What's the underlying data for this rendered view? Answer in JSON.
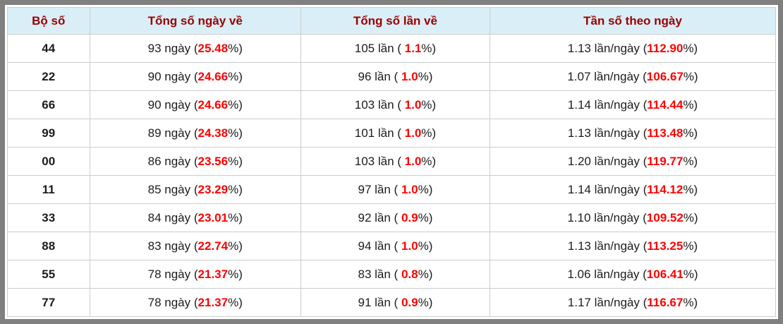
{
  "colors": {
    "frame_gray": "#808080",
    "header_background": "#daeef7",
    "header_text": "#990000",
    "body_text": "#1c1c1c",
    "percent_red": "#ff0000",
    "cell_border": "#cccccc"
  },
  "table": {
    "headers": [
      "Bộ số",
      "Tổng số ngày về",
      "Tổng số lần về",
      "Tần số theo ngày"
    ],
    "rows": [
      [
        {
          "text": "44"
        },
        {
          "pre": "93 ngày (",
          "red": "25.48",
          "post": "%)"
        },
        {
          "pre": "105 lần ( ",
          "red": "1.1",
          "post": "%)"
        },
        {
          "pre": "1.13 lần/ngày (",
          "red": "112.90",
          "post": "%)"
        }
      ],
      [
        {
          "text": "22"
        },
        {
          "pre": "90 ngày (",
          "red": "24.66",
          "post": "%)"
        },
        {
          "pre": "96 lần ( ",
          "red": "1.0",
          "post": "%)"
        },
        {
          "pre": "1.07 lần/ngày (",
          "red": "106.67",
          "post": "%)"
        }
      ],
      [
        {
          "text": "66"
        },
        {
          "pre": "90 ngày (",
          "red": "24.66",
          "post": "%)"
        },
        {
          "pre": "103 lần ( ",
          "red": "1.0",
          "post": "%)"
        },
        {
          "pre": "1.14 lần/ngày (",
          "red": "114.44",
          "post": "%)"
        }
      ],
      [
        {
          "text": "99"
        },
        {
          "pre": "89 ngày (",
          "red": "24.38",
          "post": "%)"
        },
        {
          "pre": "101 lần ( ",
          "red": "1.0",
          "post": "%)"
        },
        {
          "pre": "1.13 lần/ngày (",
          "red": "113.48",
          "post": "%)"
        }
      ],
      [
        {
          "text": "00"
        },
        {
          "pre": "86 ngày (",
          "red": "23.56",
          "post": "%)"
        },
        {
          "pre": "103 lần ( ",
          "red": "1.0",
          "post": "%)"
        },
        {
          "pre": "1.20 lần/ngày (",
          "red": "119.77",
          "post": "%)"
        }
      ],
      [
        {
          "text": "11"
        },
        {
          "pre": "85 ngày (",
          "red": "23.29",
          "post": "%)"
        },
        {
          "pre": "97 lần ( ",
          "red": "1.0",
          "post": "%)"
        },
        {
          "pre": "1.14 lần/ngày (",
          "red": "114.12",
          "post": "%)"
        }
      ],
      [
        {
          "text": "33"
        },
        {
          "pre": "84 ngày (",
          "red": "23.01",
          "post": "%)"
        },
        {
          "pre": "92 lần ( ",
          "red": "0.9",
          "post": "%)"
        },
        {
          "pre": "1.10 lần/ngày (",
          "red": "109.52",
          "post": "%)"
        }
      ],
      [
        {
          "text": "88"
        },
        {
          "pre": "83 ngày (",
          "red": "22.74",
          "post": "%)"
        },
        {
          "pre": "94 lần ( ",
          "red": "1.0",
          "post": "%)"
        },
        {
          "pre": "1.13 lần/ngày (",
          "red": "113.25",
          "post": "%)"
        }
      ],
      [
        {
          "text": "55"
        },
        {
          "pre": "78 ngày (",
          "red": "21.37",
          "post": "%)"
        },
        {
          "pre": "83 lần ( ",
          "red": "0.8",
          "post": "%)"
        },
        {
          "pre": "1.06 lần/ngày (",
          "red": "106.41",
          "post": "%)"
        }
      ],
      [
        {
          "text": "77"
        },
        {
          "pre": "78 ngày (",
          "red": "21.37",
          "post": "%)"
        },
        {
          "pre": "91 lần ( ",
          "red": "0.9",
          "post": "%)"
        },
        {
          "pre": "1.17 lần/ngày (",
          "red": "116.67",
          "post": "%)"
        }
      ]
    ]
  }
}
